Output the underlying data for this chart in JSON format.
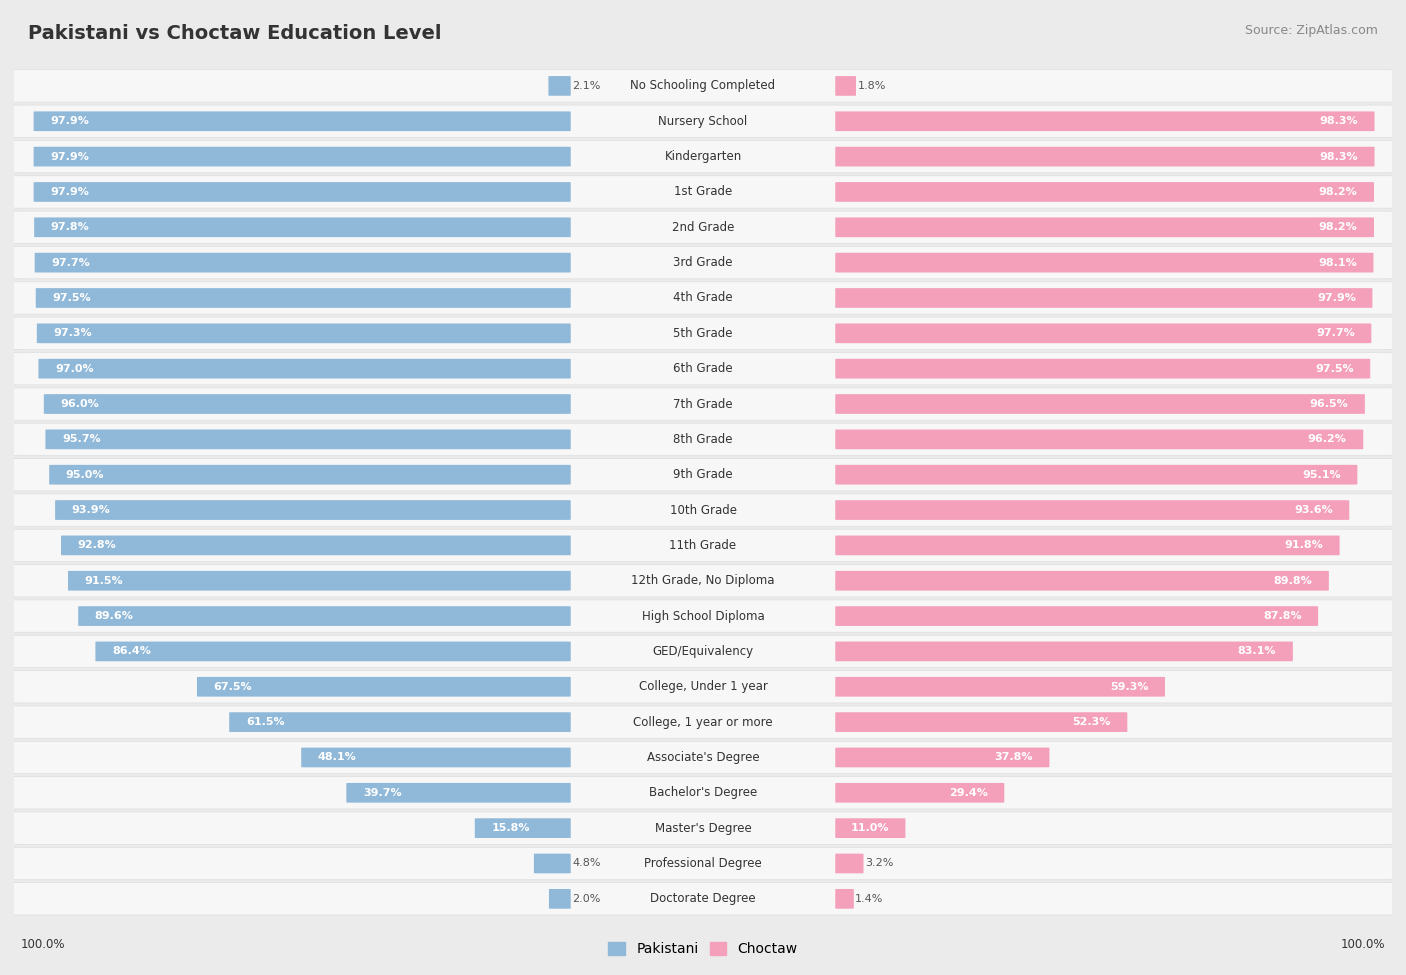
{
  "title": "Pakistani vs Choctaw Education Level",
  "source": "Source: ZipAtlas.com",
  "categories": [
    "No Schooling Completed",
    "Nursery School",
    "Kindergarten",
    "1st Grade",
    "2nd Grade",
    "3rd Grade",
    "4th Grade",
    "5th Grade",
    "6th Grade",
    "7th Grade",
    "8th Grade",
    "9th Grade",
    "10th Grade",
    "11th Grade",
    "12th Grade, No Diploma",
    "High School Diploma",
    "GED/Equivalency",
    "College, Under 1 year",
    "College, 1 year or more",
    "Associate's Degree",
    "Bachelor's Degree",
    "Master's Degree",
    "Professional Degree",
    "Doctorate Degree"
  ],
  "pakistani": [
    2.1,
    97.9,
    97.9,
    97.9,
    97.8,
    97.7,
    97.5,
    97.3,
    97.0,
    96.0,
    95.7,
    95.0,
    93.9,
    92.8,
    91.5,
    89.6,
    86.4,
    67.5,
    61.5,
    48.1,
    39.7,
    15.8,
    4.8,
    2.0
  ],
  "choctaw": [
    1.8,
    98.3,
    98.3,
    98.2,
    98.2,
    98.1,
    97.9,
    97.7,
    97.5,
    96.5,
    96.2,
    95.1,
    93.6,
    91.8,
    89.8,
    87.8,
    83.1,
    59.3,
    52.3,
    37.8,
    29.4,
    11.0,
    3.2,
    1.4
  ],
  "pakistani_color": "#90b8d8",
  "choctaw_color": "#f4a0bb",
  "bg_color": "#ebebeb",
  "row_bg_color": "#f7f7f7",
  "title_color": "#333333",
  "label_color": "#333333",
  "value_inside_color": "#ffffff",
  "value_outside_color": "#555555",
  "max_val": 100.0,
  "label_fontsize": 8.5,
  "value_fontsize": 8.0,
  "title_fontsize": 14,
  "source_fontsize": 9
}
